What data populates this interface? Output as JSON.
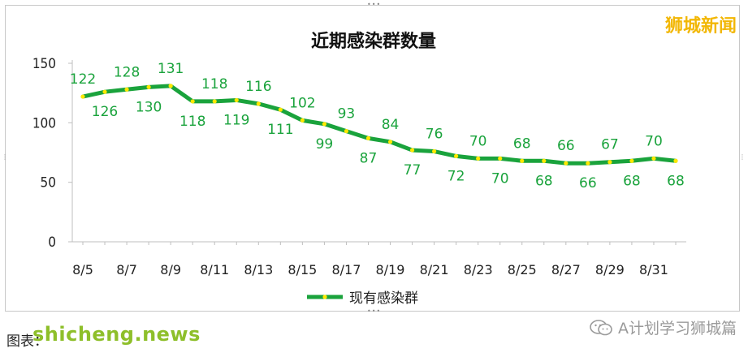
{
  "brand": "狮城新闻",
  "source": {
    "label": "图表：",
    "site": "shicheng.news"
  },
  "wechat": {
    "account": "A计划学习狮城篇",
    "icon": "wechat-icon"
  },
  "chart_data": {
    "type": "line",
    "title": "近期感染群数量",
    "xlabel": "",
    "ylabel": "",
    "ylim": [
      0,
      150
    ],
    "yticks": [
      0,
      50,
      100,
      150
    ],
    "grid": false,
    "legend": "bottom",
    "x": [
      "8/5",
      "8/6",
      "8/7",
      "8/8",
      "8/9",
      "8/10",
      "8/11",
      "8/12",
      "8/13",
      "8/14",
      "8/15",
      "8/16",
      "8/17",
      "8/18",
      "8/19",
      "8/20",
      "8/21",
      "8/22",
      "8/23",
      "8/24",
      "8/25",
      "8/26",
      "8/27",
      "8/28",
      "8/29",
      "8/30",
      "8/31",
      "9/1"
    ],
    "xtick_labels": [
      "8/5",
      "8/7",
      "8/9",
      "8/11",
      "8/13",
      "8/15",
      "8/17",
      "8/19",
      "8/21",
      "8/23",
      "8/25",
      "8/27",
      "8/29",
      "8/31"
    ],
    "series": [
      {
        "name": "现有感染群",
        "color": "#1aa33c",
        "marker_color": "#ffe800",
        "label_color": "#1aa33c",
        "values": [
          122,
          126,
          128,
          130,
          131,
          118,
          118,
          119,
          116,
          111,
          102,
          99,
          93,
          87,
          84,
          77,
          76,
          72,
          70,
          70,
          68,
          68,
          66,
          66,
          67,
          68,
          70,
          68
        ]
      }
    ]
  }
}
